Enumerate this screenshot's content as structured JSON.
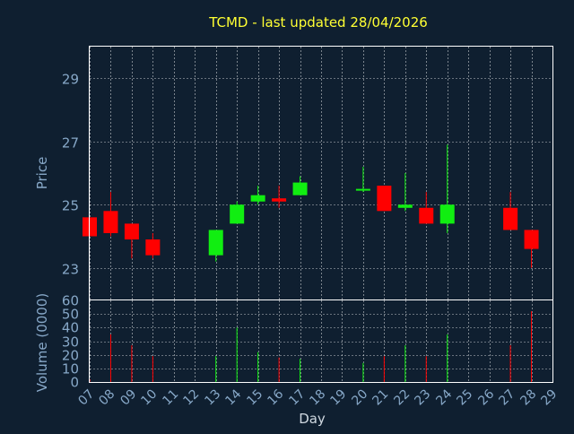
{
  "colors": {
    "background": "#0f1f30",
    "title": "#ffff33",
    "axis_text": "#87a8c8",
    "frame": "#ffffff",
    "grid": "#ffffff",
    "up": "#11ee11",
    "down": "#ff0000",
    "neutral": "#00ff00"
  },
  "chart_data": [
    {
      "type": "candlestick",
      "title": "TCMD - last updated 28/04/2026",
      "ylabel": "Price",
      "ylim": [
        22.0,
        30.0
      ],
      "yticks": [
        23,
        25,
        27,
        29
      ],
      "grid": true,
      "categories": [
        "07",
        "08",
        "09",
        "10",
        "11",
        "12",
        "13",
        "14",
        "15",
        "16",
        "17",
        "18",
        "19",
        "20",
        "21",
        "22",
        "23",
        "24",
        "25",
        "26",
        "27",
        "28",
        "29"
      ],
      "candles": [
        {
          "day": "07",
          "open": 24.6,
          "high": 24.6,
          "low": 24.0,
          "close": 24.0
        },
        {
          "day": "08",
          "open": 24.8,
          "high": 25.4,
          "low": 24.0,
          "close": 24.1
        },
        {
          "day": "09",
          "open": 24.4,
          "high": 24.4,
          "low": 23.3,
          "close": 23.9
        },
        {
          "day": "10",
          "open": 23.9,
          "high": 24.1,
          "low": 23.3,
          "close": 23.4
        },
        {
          "day": "13",
          "open": 23.4,
          "high": 24.2,
          "low": 23.2,
          "close": 24.2
        },
        {
          "day": "14",
          "open": 24.4,
          "high": 25.1,
          "low": 24.4,
          "close": 25.0
        },
        {
          "day": "15",
          "open": 25.1,
          "high": 25.6,
          "low": 25.0,
          "close": 25.3
        },
        {
          "day": "16",
          "open": 25.2,
          "high": 25.6,
          "low": 24.9,
          "close": 25.1
        },
        {
          "day": "17",
          "open": 25.3,
          "high": 25.9,
          "low": 25.3,
          "close": 25.7
        },
        {
          "day": "20",
          "open": 25.5,
          "high": 26.2,
          "low": 25.4,
          "close": 25.5
        },
        {
          "day": "21",
          "open": 25.6,
          "high": 25.6,
          "low": 24.8,
          "close": 24.8
        },
        {
          "day": "22",
          "open": 24.9,
          "high": 26.0,
          "low": 24.8,
          "close": 25.0
        },
        {
          "day": "23",
          "open": 24.9,
          "high": 25.4,
          "low": 24.4,
          "close": 24.4
        },
        {
          "day": "24",
          "open": 24.4,
          "high": 26.9,
          "low": 24.1,
          "close": 25.0
        },
        {
          "day": "27",
          "open": 24.9,
          "high": 25.4,
          "low": 24.2,
          "close": 24.2
        },
        {
          "day": "28",
          "open": 24.2,
          "high": 24.2,
          "low": 23.0,
          "close": 23.6
        }
      ]
    },
    {
      "type": "bar",
      "ylabel": "Volume (0000)",
      "xlabel": "Day",
      "ylim": [
        0,
        60
      ],
      "yticks": [
        0,
        10,
        20,
        30,
        40,
        50,
        60
      ],
      "grid": true,
      "categories": [
        "07",
        "08",
        "09",
        "10",
        "11",
        "12",
        "13",
        "14",
        "15",
        "16",
        "17",
        "18",
        "19",
        "20",
        "21",
        "22",
        "23",
        "24",
        "25",
        "26",
        "27",
        "28",
        "29"
      ],
      "volumes": [
        {
          "day": "07",
          "value": 2,
          "direction": "down"
        },
        {
          "day": "08",
          "value": 35,
          "direction": "down"
        },
        {
          "day": "09",
          "value": 27,
          "direction": "down"
        },
        {
          "day": "10",
          "value": 19,
          "direction": "down"
        },
        {
          "day": "13",
          "value": 19,
          "direction": "up"
        },
        {
          "day": "14",
          "value": 40,
          "direction": "up"
        },
        {
          "day": "15",
          "value": 22,
          "direction": "up"
        },
        {
          "day": "16",
          "value": 18,
          "direction": "down"
        },
        {
          "day": "17",
          "value": 17,
          "direction": "up"
        },
        {
          "day": "20",
          "value": 14,
          "direction": "up"
        },
        {
          "day": "21",
          "value": 19,
          "direction": "down"
        },
        {
          "day": "22",
          "value": 27,
          "direction": "up"
        },
        {
          "day": "23",
          "value": 19,
          "direction": "down"
        },
        {
          "day": "24",
          "value": 35,
          "direction": "up"
        },
        {
          "day": "27",
          "value": 27,
          "direction": "down"
        },
        {
          "day": "28",
          "value": 52,
          "direction": "down"
        }
      ]
    }
  ]
}
